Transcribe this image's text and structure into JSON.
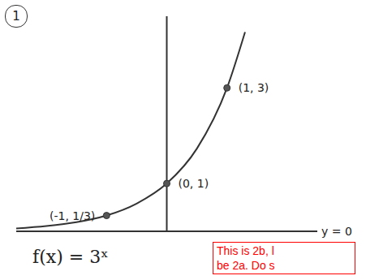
{
  "chart_data": {
    "type": "line",
    "title": "f(x) = 3ˣ",
    "panel_label": "1",
    "x": [
      -2.5,
      -2,
      -1.5,
      -1,
      -0.5,
      0,
      0.5,
      1,
      1.3
    ],
    "values": [
      0.06,
      0.11,
      0.19,
      0.33,
      0.58,
      1,
      1.73,
      3,
      4.17
    ],
    "color": "#333333",
    "xlim": [
      -2.5,
      2.5
    ],
    "ylim": [
      0,
      4.5
    ],
    "origin": [
      0,
      0
    ],
    "tick_labels": false,
    "grid": false,
    "points": [
      {
        "x": -1,
        "y": 0.33,
        "label": "(-1, 1/3)"
      },
      {
        "x": 0,
        "y": 1,
        "label": "(0, 1)"
      },
      {
        "x": 1,
        "y": 3,
        "label": "(1, 3)"
      }
    ],
    "asymptote": {
      "y": 0,
      "label": "y = 0"
    },
    "note": {
      "lines": [
        "This is 2b, l",
        "be 2a. Do s"
      ],
      "color": "#ff0000"
    }
  }
}
